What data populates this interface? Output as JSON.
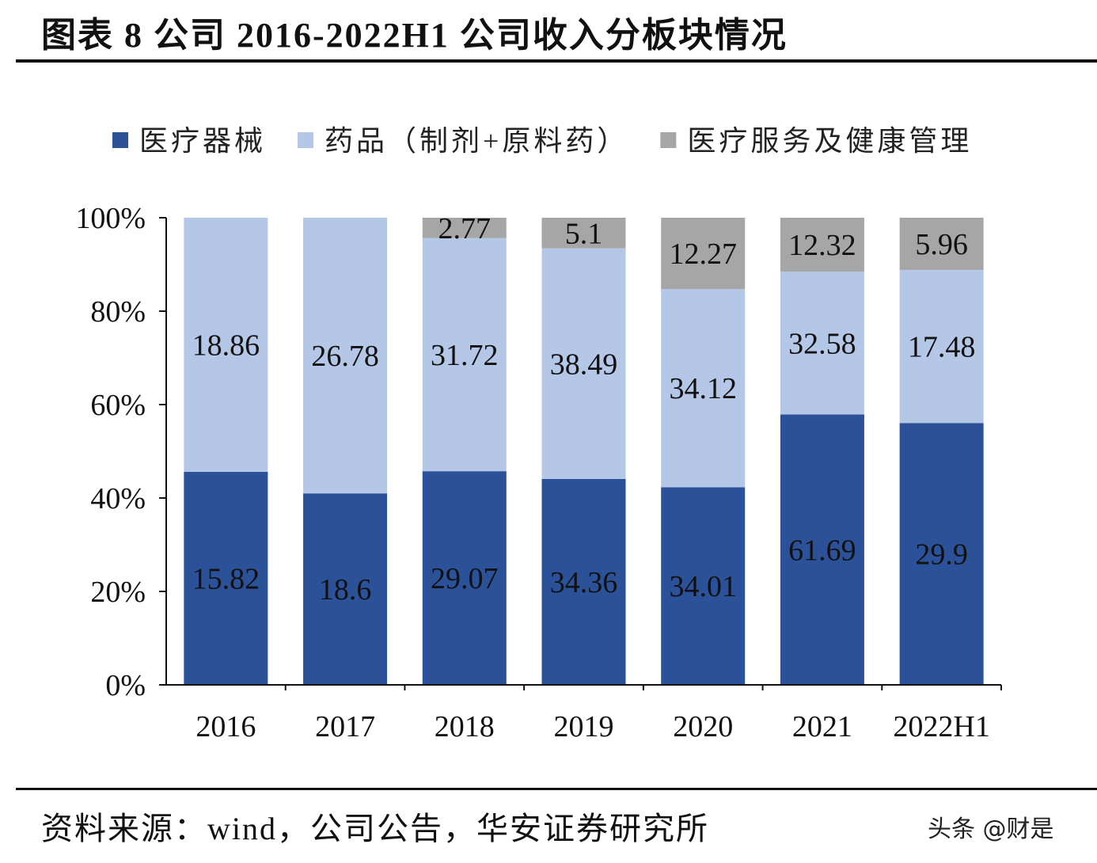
{
  "title": "图表 8 公司 2016-2022H1 公司收入分板块情况",
  "source": "资料来源：wind，公司公告，华安证券研究所",
  "watermark": "头条 @财是",
  "chart_data": {
    "type": "bar",
    "stacked": "percent",
    "categories": [
      "2016",
      "2017",
      "2018",
      "2019",
      "2020",
      "2021",
      "2022H1"
    ],
    "series": [
      {
        "name": "医疗器械",
        "color": "#2B5199",
        "values": [
          15.82,
          18.6,
          29.07,
          34.36,
          34.01,
          61.69,
          29.9
        ]
      },
      {
        "name": "药品（制剂+原料药）",
        "color": "#B4C7E7",
        "values": [
          18.86,
          26.78,
          31.72,
          38.49,
          34.12,
          32.58,
          17.48
        ]
      },
      {
        "name": "医疗服务及健康管理",
        "color": "#A6A6A6",
        "values": [
          null,
          null,
          2.77,
          5.1,
          12.27,
          12.32,
          5.96
        ]
      }
    ],
    "y_ticks": [
      "0%",
      "20%",
      "40%",
      "60%",
      "80%",
      "100%"
    ],
    "ylim": [
      0,
      100
    ],
    "legend": "top",
    "grid": false
  }
}
